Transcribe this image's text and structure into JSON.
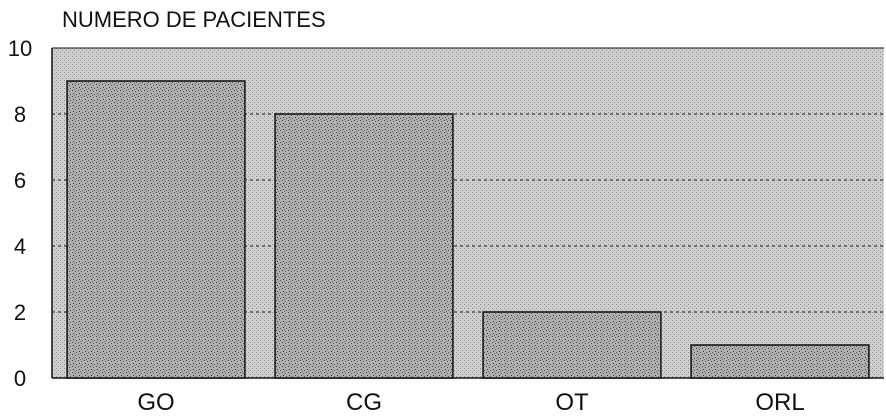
{
  "chart_data": {
    "type": "bar",
    "ylabel": "NUMERO DE PACIENTES",
    "categories": [
      "GO",
      "CG",
      "OT",
      "ORL"
    ],
    "values": [
      9,
      8,
      2,
      1
    ],
    "ylim": [
      0,
      10
    ],
    "yticks": [
      0,
      2,
      4,
      6,
      8,
      10
    ],
    "grid": true,
    "legend": "none",
    "colors": {
      "plot_background": "#c9c9c9",
      "bar_fill": "#a8a8a8",
      "bar_stroke": "#111111",
      "grid_line": "#3a3a3a",
      "axis_line": "#111111"
    }
  }
}
